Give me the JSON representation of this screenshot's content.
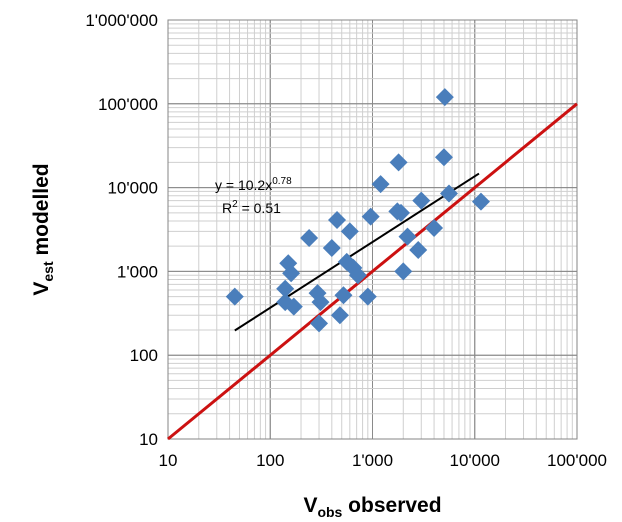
{
  "chart_data": {
    "type": "scatter",
    "xscale": "log",
    "yscale": "log",
    "xlim": [
      10,
      100000
    ],
    "ylim": [
      10,
      1000000
    ],
    "grid": true,
    "legend": "none",
    "xlabel": {
      "main": "V",
      "sub": "obs",
      "rest": " observed"
    },
    "ylabel": {
      "main": "V",
      "sub": "est",
      "rest": " modelled"
    },
    "x_ticks": [
      {
        "value": 10,
        "label": "10"
      },
      {
        "value": 100,
        "label": "100"
      },
      {
        "value": 1000,
        "label": "1'000"
      },
      {
        "value": 10000,
        "label": "10'000"
      },
      {
        "value": 100000,
        "label": "100'000"
      }
    ],
    "y_ticks": [
      {
        "value": 10,
        "label": "10"
      },
      {
        "value": 100,
        "label": "100"
      },
      {
        "value": 1000,
        "label": "1'000"
      },
      {
        "value": 10000,
        "label": "10'000"
      },
      {
        "value": 100000,
        "label": "100'000"
      },
      {
        "value": 1000000,
        "label": "1'000'000"
      }
    ],
    "series": [
      {
        "points": [
          [
            45,
            500
          ],
          [
            140,
            430
          ],
          [
            140,
            620
          ],
          [
            150,
            1250
          ],
          [
            160,
            950
          ],
          [
            170,
            380
          ],
          [
            240,
            2500
          ],
          [
            290,
            550
          ],
          [
            300,
            240
          ],
          [
            310,
            430
          ],
          [
            400,
            1900
          ],
          [
            450,
            4100
          ],
          [
            480,
            300
          ],
          [
            520,
            520
          ],
          [
            560,
            1300
          ],
          [
            600,
            3000
          ],
          [
            650,
            1100
          ],
          [
            720,
            900
          ],
          [
            900,
            500
          ],
          [
            960,
            4500
          ],
          [
            1200,
            11000
          ],
          [
            1750,
            5200
          ],
          [
            1800,
            20000
          ],
          [
            1900,
            5000
          ],
          [
            2000,
            1000
          ],
          [
            2200,
            2600
          ],
          [
            2800,
            1800
          ],
          [
            3000,
            7000
          ],
          [
            4000,
            3300
          ],
          [
            5000,
            23000
          ],
          [
            5100,
            120000
          ],
          [
            5600,
            8500
          ],
          [
            11500,
            6800
          ]
        ],
        "color": "#4a7ebb"
      }
    ],
    "trendline": {
      "x": [
        45,
        11000
      ],
      "y": [
        197,
        14720
      ],
      "color": "#000000",
      "equation": {
        "prefix": "y = 10.2x",
        "exp": "0.78"
      },
      "r2": {
        "prefix": "R",
        "exp": "2",
        "suffix": " = 0.51"
      }
    },
    "reference_line": {
      "x": [
        10,
        100000
      ],
      "y": [
        10,
        100000
      ],
      "color": "#cc1111"
    }
  }
}
